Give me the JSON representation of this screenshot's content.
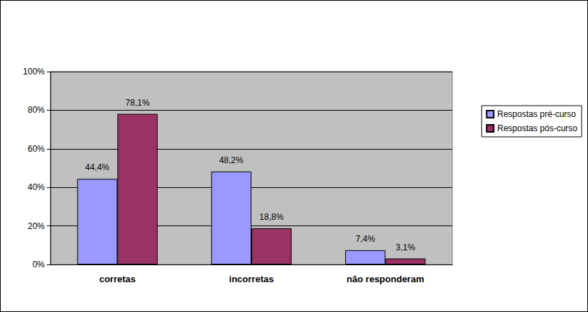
{
  "chart_data": {
    "type": "bar",
    "categories": [
      "corretas",
      "incorretas",
      "não responderam"
    ],
    "series": [
      {
        "name": "Respostas pré-curso",
        "color": "#9999ff",
        "values": [
          44.4,
          48.2,
          7.4
        ],
        "value_labels": [
          "44,4%",
          "48,2%",
          "7,4%"
        ]
      },
      {
        "name": "Respostas pós-curso",
        "color": "#993366",
        "values": [
          78.1,
          18.8,
          3.1
        ],
        "value_labels": [
          "78,1%",
          "18,8%",
          "3,1%"
        ]
      }
    ],
    "ylim": [
      0,
      100
    ],
    "yticks": [
      {
        "value": 0,
        "label": "0%"
      },
      {
        "value": 20,
        "label": "20%"
      },
      {
        "value": 40,
        "label": "40%"
      },
      {
        "value": 60,
        "label": "60%"
      },
      {
        "value": 80,
        "label": "80%"
      },
      {
        "value": 100,
        "label": "100%"
      }
    ],
    "grid": true,
    "legend": "right",
    "data_labels": true
  }
}
